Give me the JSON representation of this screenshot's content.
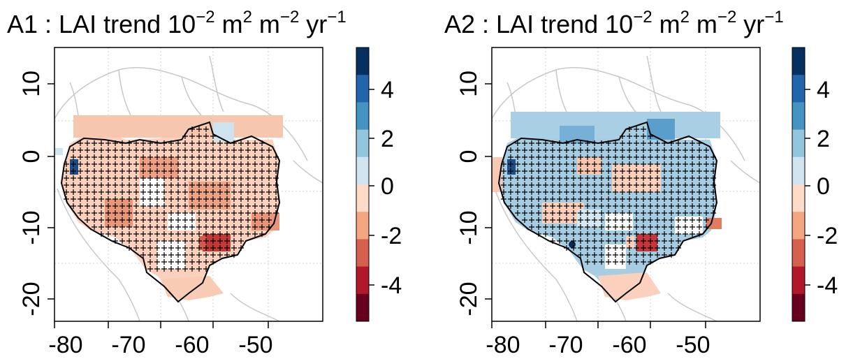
{
  "panels": [
    {
      "id": "A1",
      "title": {
        "prefix": "A1 : LAI trend 10",
        "exp1": "−2",
        "m1": " m",
        "exp2": "2",
        "m2": " m",
        "exp3": "−2",
        "yr": " yr",
        "exp4": "−1"
      },
      "xticks": [
        "-80",
        "-70",
        "-60",
        "-50"
      ],
      "yticks": [
        "10",
        "0",
        "-10",
        "-20"
      ],
      "colorbar_ticks": [
        "4",
        "2",
        "0",
        "-2",
        "-4"
      ],
      "dominant_sign": "negative"
    },
    {
      "id": "A2",
      "title": {
        "prefix": "A2 : LAI trend 10",
        "exp1": "−2",
        "m1": " m",
        "exp2": "2",
        "m2": " m",
        "exp3": "−2",
        "yr": " yr",
        "exp4": "−1"
      },
      "xticks": [
        "-80",
        "-70",
        "-60",
        "-50"
      ],
      "yticks": [
        "10",
        "0",
        "-10",
        "-20"
      ],
      "colorbar_ticks": [
        "4",
        "2",
        "0",
        "-2",
        "-4"
      ],
      "dominant_sign": "positive"
    }
  ],
  "colorbar_colors": [
    "#053061",
    "#2166ac",
    "#4393c3",
    "#92c5de",
    "#d1e5f0",
    "#fddbc7",
    "#f4a582",
    "#d6604d",
    "#b2182b",
    "#67001f"
  ],
  "map_extent": {
    "lon": [
      -80,
      -45
    ],
    "lat": [
      -23,
      15
    ]
  },
  "basin_outline_color": "#000000",
  "significance_marker": "+"
}
